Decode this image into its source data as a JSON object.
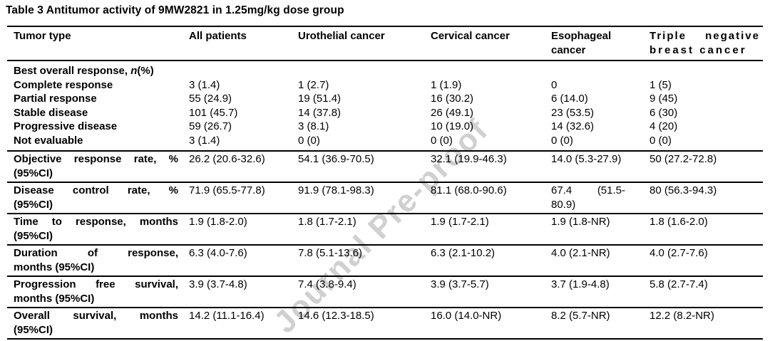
{
  "title": "Table 3 Antitumor activity of 9MW2821 in 1.25mg/kg dose group",
  "watermark": "Journal Pre-proof",
  "table": {
    "header": {
      "cells": [
        {
          "lines": [
            {
              "t": "Tumor type"
            }
          ]
        },
        {
          "lines": [
            {
              "t": "All patients"
            }
          ]
        },
        {
          "lines": [
            {
              "t": "Urothelial cancer"
            }
          ]
        },
        {
          "lines": [
            {
              "t": "Cervical cancer"
            }
          ]
        },
        {
          "lines": [
            {
              "t": "Esophageal"
            },
            {
              "t": "cancer"
            }
          ]
        },
        {
          "lines": [
            {
              "t": "Triple negative",
              "j": true,
              "ls": 2
            },
            {
              "t": "breast cancer",
              "ls": 3
            }
          ]
        }
      ]
    },
    "rows": [
      {
        "cls": "pt4",
        "cells": [
          [
            {
              "pre": "Best overall response, ",
              "it": "n",
              "post": "(%)"
            }
          ],
          [],
          [],
          [],
          [],
          []
        ]
      },
      {
        "cells": [
          [
            {
              "t": "Complete response"
            }
          ],
          [
            {
              "t": "3 (1.4)"
            }
          ],
          [
            {
              "t": "1 (2.7)"
            }
          ],
          [
            {
              "t": "1 (1.9)"
            }
          ],
          [
            {
              "t": "0"
            }
          ],
          [
            {
              "t": "1 (5)"
            }
          ]
        ]
      },
      {
        "cells": [
          [
            {
              "t": "Partial response"
            }
          ],
          [
            {
              "t": "55 (24.9)"
            }
          ],
          [
            {
              "t": "19 (51.4)"
            }
          ],
          [
            {
              "t": "16 (30.2)"
            }
          ],
          [
            {
              "t": "6 (14.0)"
            }
          ],
          [
            {
              "t": "9 (45)"
            }
          ]
        ]
      },
      {
        "cells": [
          [
            {
              "t": "Stable disease"
            }
          ],
          [
            {
              "t": "101 (45.7)"
            }
          ],
          [
            {
              "t": "14 (37.8)"
            }
          ],
          [
            {
              "t": "26 (49.1)"
            }
          ],
          [
            {
              "t": "23 (53.5)"
            }
          ],
          [
            {
              "t": "6 (30)"
            }
          ]
        ]
      },
      {
        "cells": [
          [
            {
              "t": "Progressive disease"
            }
          ],
          [
            {
              "t": "59 (26.7)"
            }
          ],
          [
            {
              "t": "3 (8.1)"
            }
          ],
          [
            {
              "t": "10 (19.0)"
            }
          ],
          [
            {
              "t": "14 (32.6)"
            }
          ],
          [
            {
              "t": "4 (20)"
            }
          ]
        ]
      },
      {
        "cls": "pb4",
        "cells": [
          [
            {
              "t": "Not evaluable"
            }
          ],
          [
            {
              "t": "3 (1.4)"
            }
          ],
          [
            {
              "t": "0 (0)"
            }
          ],
          [
            {
              "t": "0 (0)"
            }
          ],
          [
            {
              "t": "0 (0)"
            }
          ],
          [
            {
              "t": "0 (0)"
            }
          ]
        ]
      },
      {
        "ruled": true,
        "cells": [
          [
            {
              "t": "Objective response rate, %",
              "j": true
            },
            {
              "t": "(95%CI)"
            }
          ],
          [
            {
              "t": "26.2 (20.6-32.6)"
            }
          ],
          [
            {
              "t": "54.1 (36.9-70.5)"
            }
          ],
          [
            {
              "t": "32.1 (19.9-46.3)"
            }
          ],
          [
            {
              "t": "14.0 (5.3-27.9)"
            }
          ],
          [
            {
              "t": "50 (27.2-72.8)"
            }
          ]
        ]
      },
      {
        "ruled": true,
        "cells": [
          [
            {
              "t": "Disease control rate, %",
              "j": true
            },
            {
              "t": "(95%CI)"
            }
          ],
          [
            {
              "t": "71.9 (65.5-77.8)"
            }
          ],
          [
            {
              "t": "91.9 (78.1-98.3)"
            }
          ],
          [
            {
              "t": "81.1 (68.0-90.6)"
            }
          ],
          [
            {
              "t": "67.4 (51.5-",
              "j": true
            },
            {
              "t": "80.9)"
            }
          ],
          [
            {
              "t": "80 (56.3-94.3)"
            }
          ]
        ]
      },
      {
        "ruled": true,
        "cells": [
          [
            {
              "t": "Time to response, months",
              "j": true
            },
            {
              "t": "(95%CI)"
            }
          ],
          [
            {
              "t": "1.9 (1.8-2.0)"
            }
          ],
          [
            {
              "t": "1.8 (1.7-2.1)"
            }
          ],
          [
            {
              "t": "1.9 (1.7-2.1)"
            }
          ],
          [
            {
              "t": "1.9 (1.8-NR)"
            }
          ],
          [
            {
              "t": "1.8 (1.6-2.0)"
            }
          ]
        ]
      },
      {
        "ruled": true,
        "cells": [
          [
            {
              "t": "Duration of response,",
              "j": true
            },
            {
              "t": "months (95%CI)"
            }
          ],
          [
            {
              "t": "6.3 (4.0-7.6)"
            }
          ],
          [
            {
              "t": "7.8 (5.1-13.6)"
            }
          ],
          [
            {
              "t": "6.3 (2.1-10.2)"
            }
          ],
          [
            {
              "t": "4.0 (2.1-NR)"
            }
          ],
          [
            {
              "t": "4.0 (2.7-7.6)"
            }
          ]
        ]
      },
      {
        "ruled": true,
        "cells": [
          [
            {
              "t": "Progression free survival,",
              "j": true
            },
            {
              "t": "months (95%CI)"
            }
          ],
          [
            {
              "t": "3.9 (3.7-4.8)"
            }
          ],
          [
            {
              "t": "7.4 (3.8-9.4)"
            }
          ],
          [
            {
              "t": "3.9 (3.7-5.7)"
            }
          ],
          [
            {
              "t": "3.7 (1.9-4.8)"
            }
          ],
          [
            {
              "t": "5.8 (2.7-7.4)"
            }
          ]
        ]
      },
      {
        "ruled": true,
        "cells": [
          [
            {
              "t": "Overall survival, months",
              "j": true
            },
            {
              "t": "(95%CI)"
            }
          ],
          [
            {
              "t": "14.2 (11.1-16.4)"
            }
          ],
          [
            {
              "t": "14.6 (12.3-18.5)"
            }
          ],
          [
            {
              "t": "16.0 (14.0-NR)"
            }
          ],
          [
            {
              "t": "8.2 (5.7-NR)"
            }
          ],
          [
            {
              "t": "12.2 (8.2-NR)"
            }
          ]
        ]
      }
    ]
  }
}
